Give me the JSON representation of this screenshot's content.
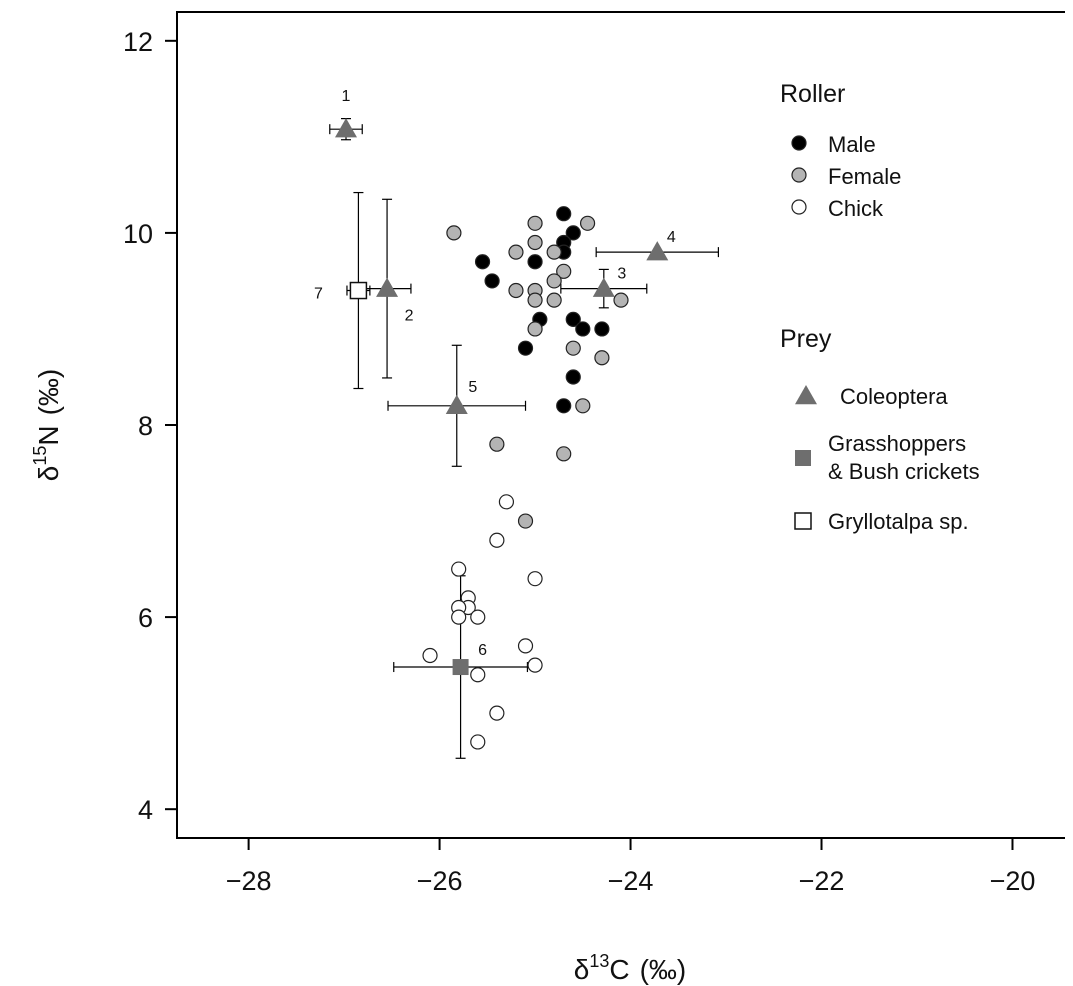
{
  "chart_data": {
    "type": "scatter",
    "xlabel": {
      "delta": "δ",
      "sup": "13",
      "element": "C",
      "unit": "(‰)"
    },
    "ylabel": {
      "delta": "δ",
      "sup": "15",
      "element": "N",
      "unit": "(‰)"
    },
    "xlim": [
      -28.75,
      -19.45
    ],
    "ylim": [
      3.7,
      12.3
    ],
    "xticks": [
      -28,
      -26,
      -24,
      -22,
      -20
    ],
    "yticks": [
      4,
      6,
      8,
      10,
      12
    ],
    "xtick_labels": [
      "−28",
      "−26",
      "−24",
      "−22",
      "−20"
    ],
    "ytick_labels": [
      "4",
      "6",
      "8",
      "10",
      "12"
    ],
    "grid": false,
    "legend": {
      "placement": "right",
      "groups": [
        {
          "title": "Roller",
          "items": [
            {
              "label": "Male",
              "marker": "circle",
              "fill": "#000000"
            },
            {
              "label": "Female",
              "marker": "circle",
              "fill": "#b4b4b4"
            },
            {
              "label": "Chick",
              "marker": "circle",
              "fill": "#ffffff"
            }
          ]
        },
        {
          "title": "Prey",
          "items": [
            {
              "label": "Coleoptera",
              "marker": "triangle",
              "fill": "#6e6e6e"
            },
            {
              "label": "Grasshoppers\n& Bush crickets",
              "marker": "square",
              "fill": "#6e6e6e"
            },
            {
              "label": "Gryllotalpa sp.",
              "marker": "square",
              "fill": "#ffffff"
            }
          ]
        }
      ]
    },
    "series": [
      {
        "name": "Male",
        "marker": "circle",
        "fill": "#000000",
        "points": [
          [
            -24.7,
            10.2
          ],
          [
            -24.6,
            10.0
          ],
          [
            -24.7,
            9.9
          ],
          [
            -24.7,
            9.8
          ],
          [
            -25.0,
            9.7
          ],
          [
            -25.55,
            9.7
          ],
          [
            -25.45,
            9.5
          ],
          [
            -24.6,
            9.1
          ],
          [
            -24.95,
            9.1
          ],
          [
            -24.5,
            9.0
          ],
          [
            -24.3,
            9.0
          ],
          [
            -25.1,
            8.8
          ],
          [
            -24.6,
            8.5
          ],
          [
            -24.7,
            8.2
          ]
        ]
      },
      {
        "name": "Female",
        "marker": "circle",
        "fill": "#b4b4b4",
        "points": [
          [
            -25.85,
            10.0
          ],
          [
            -25.0,
            10.1
          ],
          [
            -24.45,
            10.1
          ],
          [
            -25.0,
            9.9
          ],
          [
            -25.2,
            9.8
          ],
          [
            -24.8,
            9.8
          ],
          [
            -24.7,
            9.6
          ],
          [
            -24.8,
            9.5
          ],
          [
            -25.2,
            9.4
          ],
          [
            -25.0,
            9.4
          ],
          [
            -24.8,
            9.3
          ],
          [
            -25.0,
            9.3
          ],
          [
            -24.1,
            9.3
          ],
          [
            -25.0,
            9.0
          ],
          [
            -24.6,
            8.8
          ],
          [
            -24.3,
            8.7
          ],
          [
            -24.5,
            8.2
          ],
          [
            -25.4,
            7.8
          ],
          [
            -24.7,
            7.7
          ],
          [
            -25.1,
            7.0
          ]
        ]
      },
      {
        "name": "Chick",
        "marker": "circle",
        "fill": "#ffffff",
        "points": [
          [
            -25.3,
            7.2
          ],
          [
            -25.4,
            6.8
          ],
          [
            -25.8,
            6.5
          ],
          [
            -25.0,
            6.4
          ],
          [
            -25.7,
            6.2
          ],
          [
            -25.7,
            6.1
          ],
          [
            -25.8,
            6.1
          ],
          [
            -25.8,
            6.0
          ],
          [
            -25.6,
            6.0
          ],
          [
            -25.1,
            5.7
          ],
          [
            -26.1,
            5.6
          ],
          [
            -25.0,
            5.5
          ],
          [
            -25.6,
            5.4
          ],
          [
            -25.4,
            5.0
          ],
          [
            -25.6,
            4.7
          ]
        ]
      },
      {
        "name": "Prey",
        "marker": "mixed",
        "points": [
          {
            "id": "1",
            "x": -26.98,
            "y": 11.08,
            "xerr": 0.17,
            "yerr": 0.11,
            "marker": "triangle",
            "fill": "#6e6e6e"
          },
          {
            "id": "2",
            "x": -26.55,
            "y": 9.42,
            "xerr": 0.25,
            "yerr": 0.93,
            "marker": "triangle",
            "fill": "#6e6e6e"
          },
          {
            "id": "3",
            "x": -24.28,
            "y": 9.42,
            "xerr": 0.45,
            "yerr": 0.2,
            "marker": "triangle",
            "fill": "#6e6e6e"
          },
          {
            "id": "4",
            "x": -23.72,
            "y": 9.8,
            "xerr": 0.64,
            "yerr": 0.0,
            "marker": "triangle",
            "fill": "#6e6e6e"
          },
          {
            "id": "5",
            "x": -25.82,
            "y": 8.2,
            "xerr": 0.72,
            "yerr": 0.63,
            "marker": "triangle",
            "fill": "#6e6e6e"
          },
          {
            "id": "6",
            "x": -25.78,
            "y": 5.48,
            "xerr": 0.7,
            "yerr": 0.95,
            "marker": "square",
            "fill": "#6e6e6e"
          },
          {
            "id": "7",
            "x": -26.85,
            "y": 9.4,
            "xerr": 0.12,
            "yerr": 1.02,
            "marker": "square",
            "fill": "#ffffff"
          }
        ]
      }
    ]
  }
}
